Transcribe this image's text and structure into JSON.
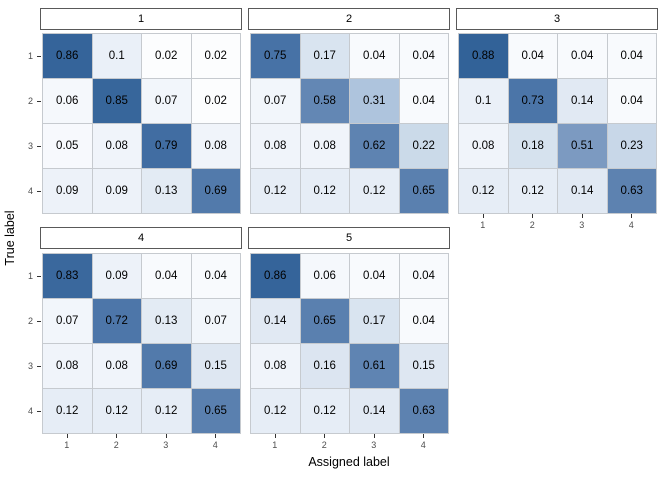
{
  "chart_data": {
    "type": "heatmap",
    "title": "",
    "xlabel": "Assigned label",
    "ylabel": "True label",
    "x_ticks": [
      "1",
      "2",
      "3",
      "4"
    ],
    "y_ticks": [
      "1",
      "2",
      "3",
      "4"
    ],
    "facet_labels": [
      "1",
      "2",
      "3",
      "4",
      "5"
    ],
    "legend": "none",
    "grid": "off",
    "value_range": [
      0,
      1
    ],
    "fill_scale": {
      "low": "#FFFFFF",
      "high": "#31639B"
    },
    "panels": [
      {
        "label": "1",
        "matrix": [
          [
            0.86,
            0.1,
            0.02,
            0.02
          ],
          [
            0.06,
            0.85,
            0.07,
            0.02
          ],
          [
            0.05,
            0.08,
            0.79,
            0.08
          ],
          [
            0.09,
            0.09,
            0.13,
            0.69
          ]
        ]
      },
      {
        "label": "2",
        "matrix": [
          [
            0.75,
            0.17,
            0.04,
            0.04
          ],
          [
            0.07,
            0.58,
            0.31,
            0.04
          ],
          [
            0.08,
            0.08,
            0.62,
            0.22
          ],
          [
            0.12,
            0.12,
            0.12,
            0.65
          ]
        ]
      },
      {
        "label": "3",
        "matrix": [
          [
            0.88,
            0.04,
            0.04,
            0.04
          ],
          [
            0.1,
            0.73,
            0.14,
            0.04
          ],
          [
            0.08,
            0.18,
            0.51,
            0.23
          ],
          [
            0.12,
            0.12,
            0.14,
            0.63
          ]
        ]
      },
      {
        "label": "4",
        "matrix": [
          [
            0.83,
            0.09,
            0.04,
            0.04
          ],
          [
            0.07,
            0.72,
            0.13,
            0.07
          ],
          [
            0.08,
            0.08,
            0.69,
            0.15
          ],
          [
            0.12,
            0.12,
            0.12,
            0.65
          ]
        ]
      },
      {
        "label": "5",
        "matrix": [
          [
            0.86,
            0.06,
            0.04,
            0.04
          ],
          [
            0.14,
            0.65,
            0.17,
            0.04
          ],
          [
            0.08,
            0.16,
            0.61,
            0.15
          ],
          [
            0.12,
            0.12,
            0.14,
            0.63
          ]
        ]
      }
    ]
  }
}
